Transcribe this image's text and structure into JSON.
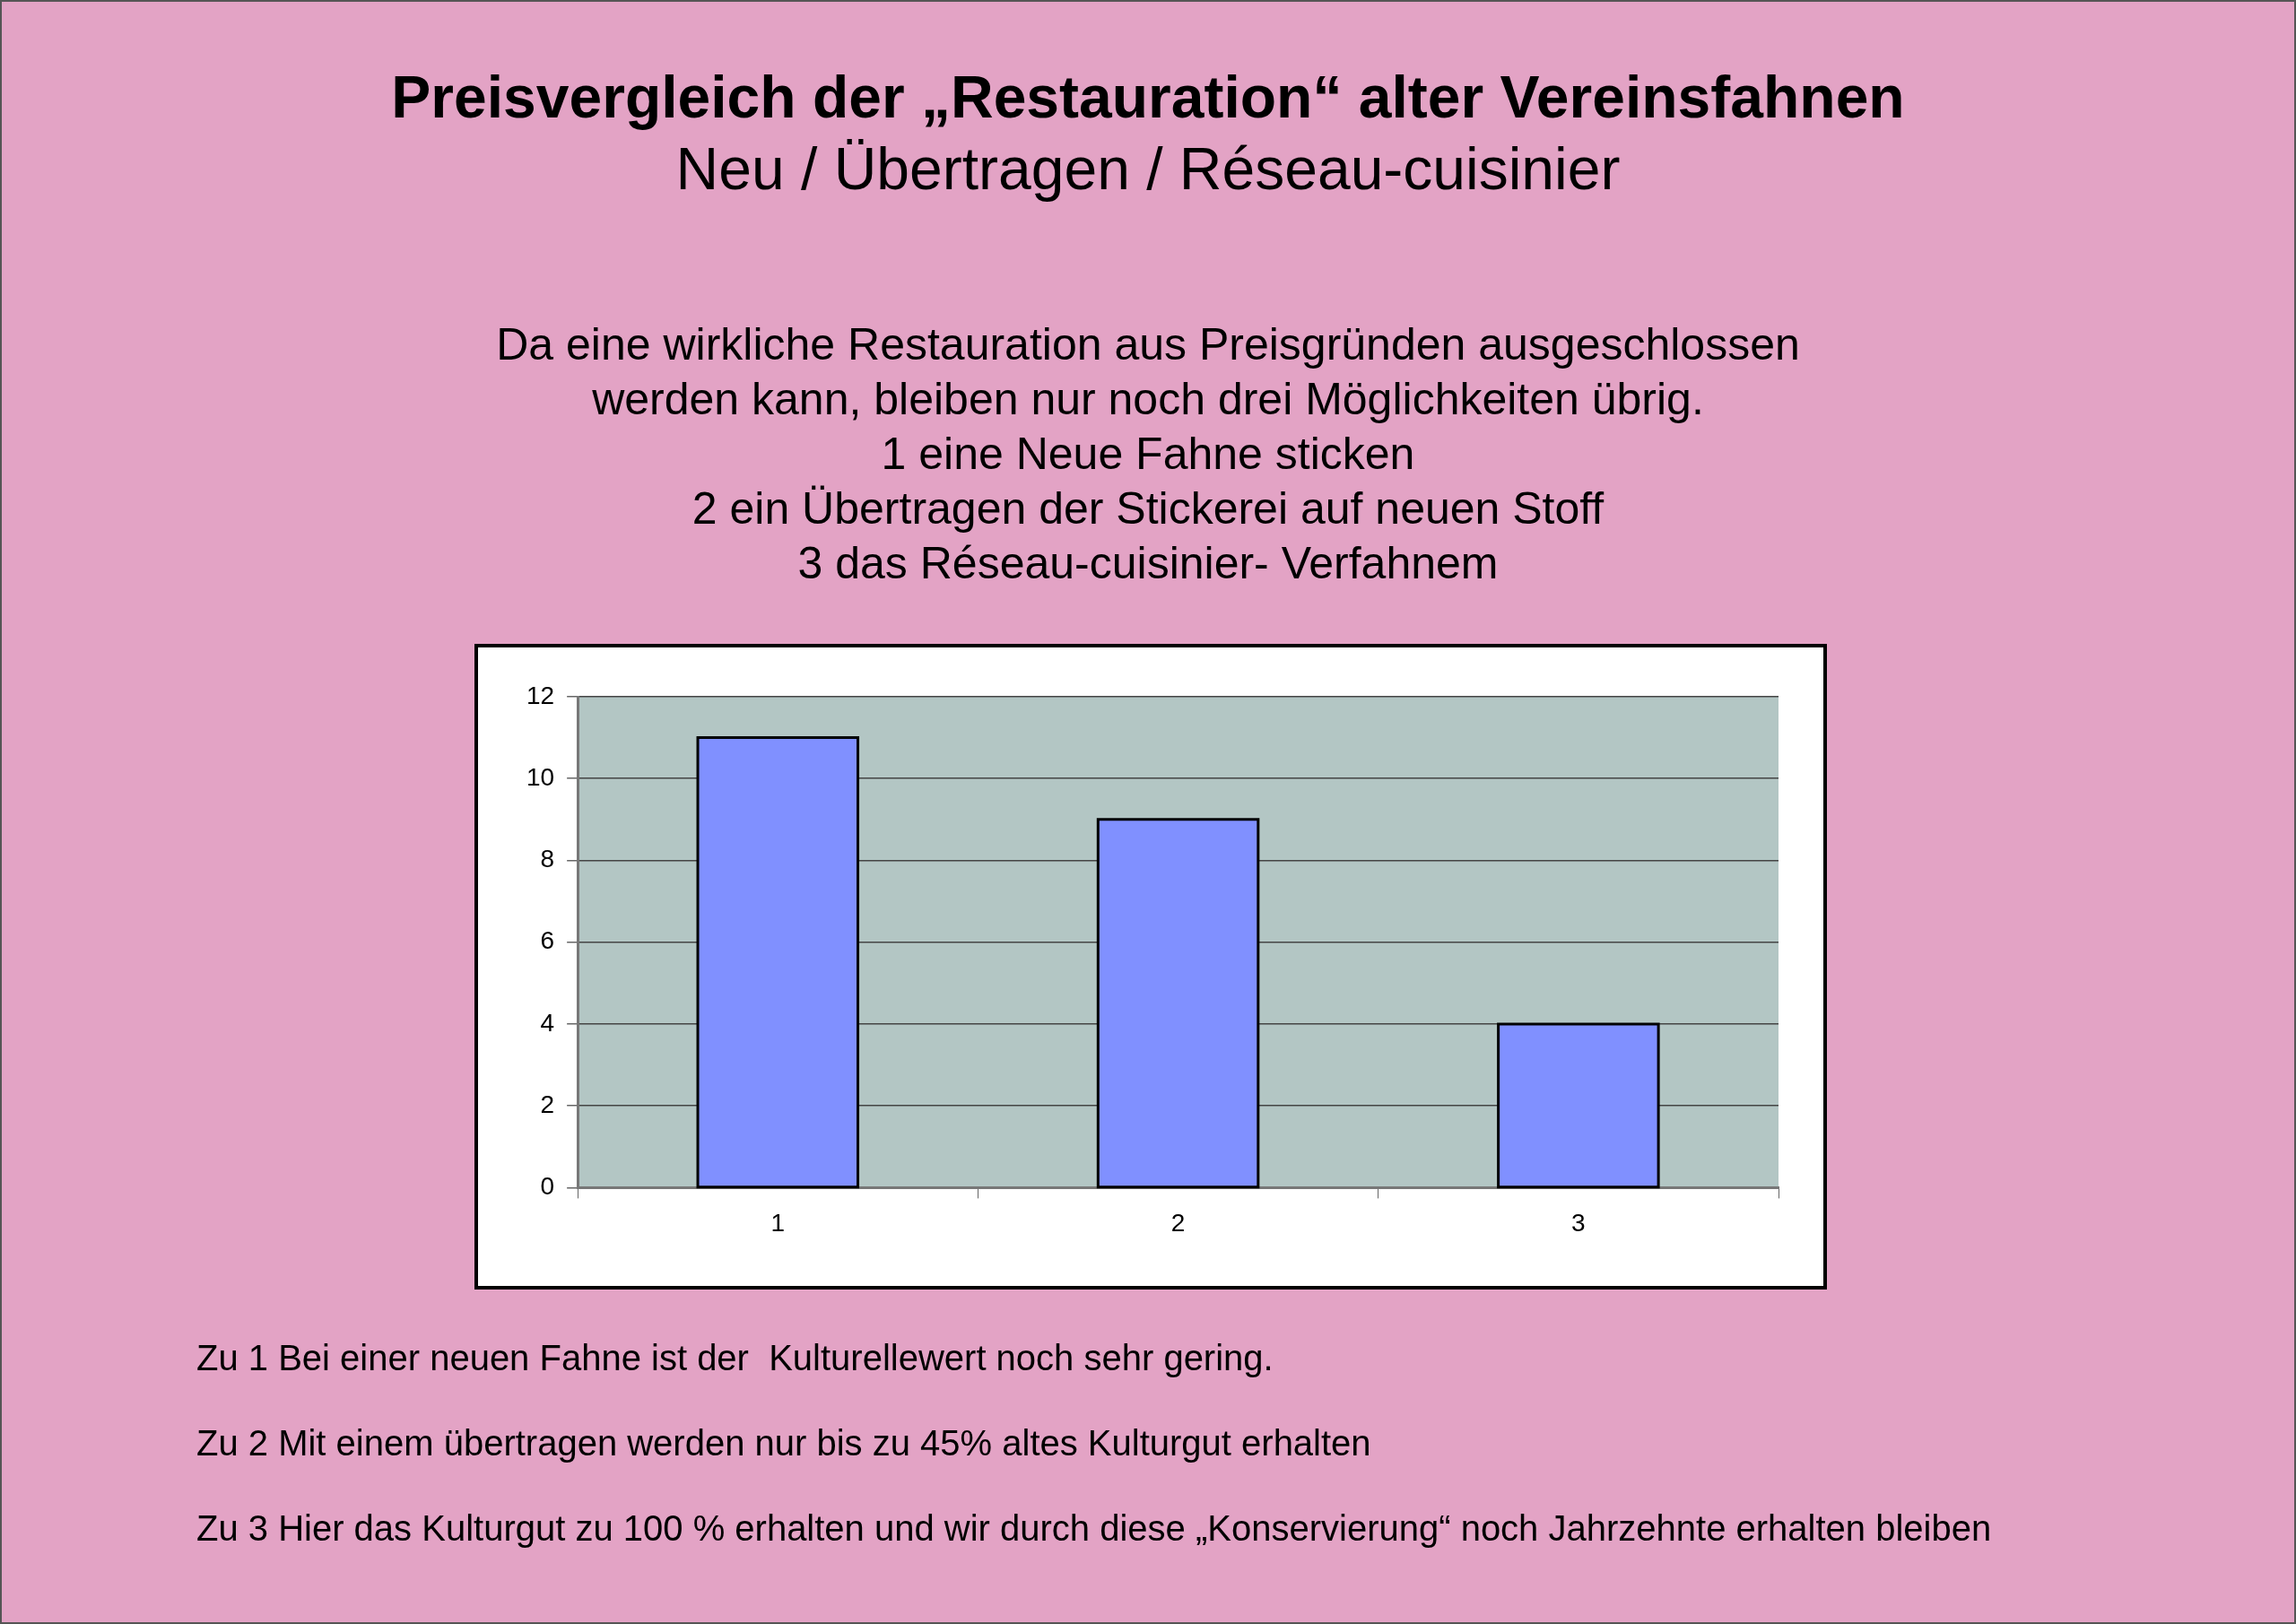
{
  "chart_data": {
    "type": "bar",
    "title": "Preisvergleich der „Restauration“ alter Vereinsfahnen",
    "subtitle": "Neu / Übertragen / Réseau-cuisinier",
    "categories": [
      "1",
      "2",
      "3"
    ],
    "values": [
      11,
      9,
      4
    ],
    "color": "#8090ff",
    "ylim": [
      0,
      12
    ],
    "yticks": [
      0,
      2,
      4,
      6,
      8,
      10,
      12
    ],
    "grid": "y",
    "legend": false,
    "annotations": [
      "Da eine wirkliche Restauration aus Preisgründen ausgeschlossen\nwerden kann, bleiben nur noch drei Möglichkeiten übrig.\n1 eine Neue Fahne sticken\n2 ein Übertragen der Stickerei auf neuen Stoff\n3 das Réseau-cuisinier- Verfahnem",
      "Zu 1 Bei einer neuen Fahne ist der  Kulturellewert noch sehr gering.",
      "Zu 2 Mit einem übertragen werden nur bis zu 45% altes Kulturgut erhalten",
      "Zu 3 Hier das Kulturgut zu 100 % erhalten und wir durch diese „Konservierung“ noch Jahrzehnte erhalten bleiben"
    ]
  }
}
